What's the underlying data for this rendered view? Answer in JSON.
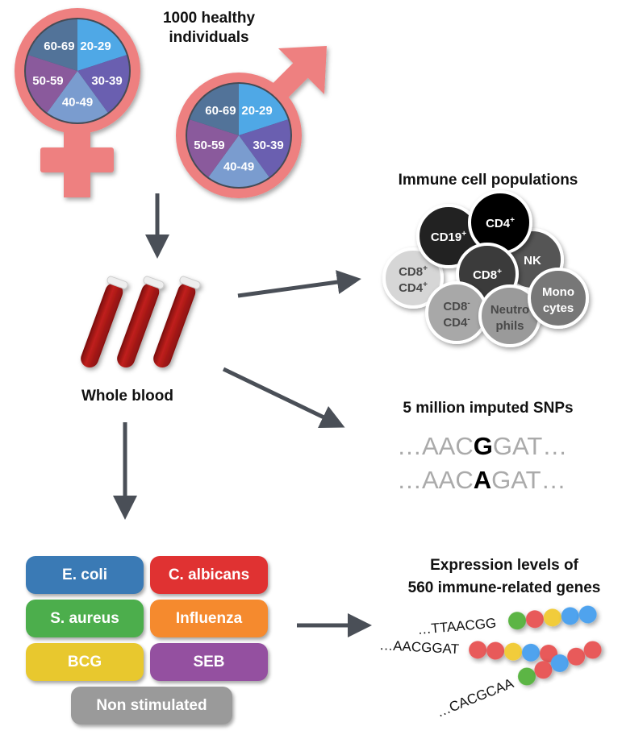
{
  "cohort": {
    "title_line1": "1000 healthy",
    "title_line2": "individuals",
    "age_groups": [
      "20-29",
      "30-39",
      "40-49",
      "50-59",
      "60-69"
    ],
    "age_colors": [
      "#4fa8e6",
      "#6a5fb0",
      "#7a9ccf",
      "#8a5a9c",
      "#527399"
    ],
    "symbol_color": "#ee8080"
  },
  "blood": {
    "label": "Whole blood"
  },
  "immune_cells": {
    "title": "Immune cell populations",
    "cells": [
      {
        "label1": "CD8",
        "sup1": "+",
        "label2": "CD4",
        "sup2": "+",
        "color": "#d6d6d6"
      },
      {
        "label1": "CD19",
        "sup1": "+",
        "color": "#222222"
      },
      {
        "label1": "NK",
        "color": "#555555"
      },
      {
        "label1": "CD4",
        "sup1": "+",
        "color": "#000000"
      },
      {
        "label1": "CD8",
        "sup1": "+",
        "color": "#3a3a3a"
      },
      {
        "label1": "CD8",
        "sup1": "-",
        "label2": "CD4",
        "sup2": "-",
        "color": "#a8a8a8"
      },
      {
        "label1": "Neutro",
        "label2": "phils",
        "color": "#9a9a9a"
      },
      {
        "label1": "Mono",
        "label2": "cytes",
        "color": "#777777"
      }
    ]
  },
  "snps": {
    "title": "5 million imputed SNPs",
    "row1": {
      "prefix": "…AAC",
      "allele": "G",
      "suffix": "GAT…"
    },
    "row2": {
      "prefix": "…AAC",
      "allele": "A",
      "suffix": "GAT…"
    }
  },
  "stimuli": {
    "items": [
      {
        "label": "E. coli",
        "color": "#3a7ab5"
      },
      {
        "label": "C. albicans",
        "color": "#e03232"
      },
      {
        "label": "S. aureus",
        "color": "#4cae4c"
      },
      {
        "label": "Influenza",
        "color": "#f58a2e"
      },
      {
        "label": "BCG",
        "color": "#e8c82e"
      },
      {
        "label": "SEB",
        "color": "#9450a0"
      },
      {
        "label": "Non stimulated",
        "color": "#9a9a9a"
      }
    ]
  },
  "expression": {
    "title_line1": "Expression levels of",
    "title_line2": "560 immune-related genes",
    "sequences": [
      "…TTAACGG",
      "…AACGGAT",
      "…CACGCAA"
    ]
  },
  "arrow_color": "#4a4f57"
}
